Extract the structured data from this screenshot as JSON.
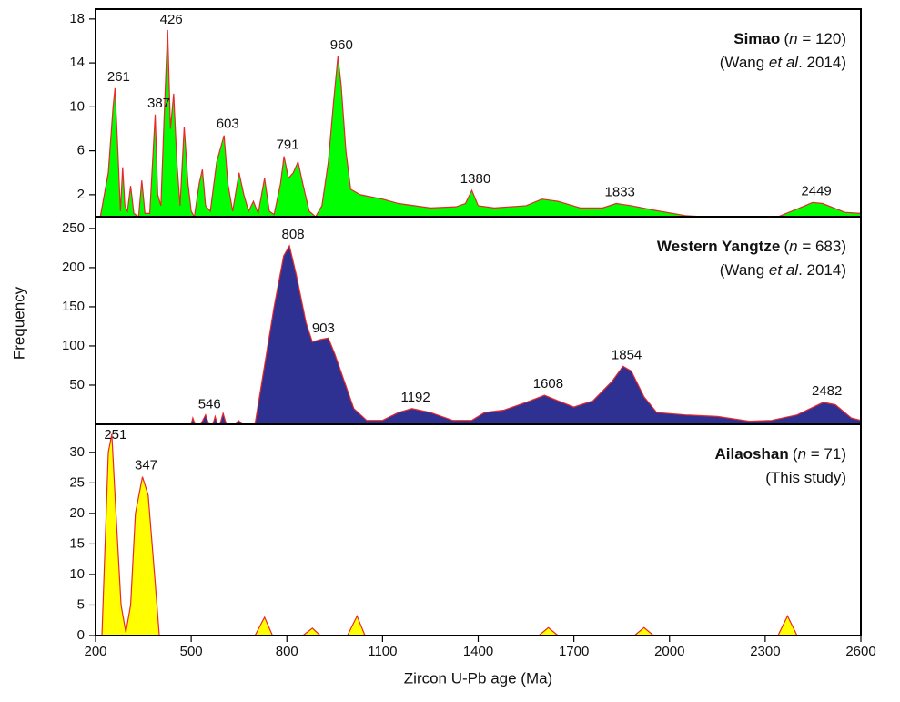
{
  "chart_data": [
    {
      "type": "area",
      "title": "Simao",
      "sample_size": [
        "(",
        "n",
        " = 120)"
      ],
      "source": [
        "(Wang ",
        "et al",
        ". 2014)"
      ],
      "ylabel": "Frequency",
      "x": [
        215,
        240,
        255,
        261,
        270,
        278,
        285,
        292,
        300,
        310,
        320,
        335,
        345,
        355,
        370,
        387,
        395,
        405,
        415,
        426,
        435,
        445,
        455,
        465,
        478,
        490,
        500,
        510,
        525,
        535,
        545,
        560,
        580,
        603,
        615,
        630,
        650,
        665,
        680,
        695,
        710,
        730,
        745,
        760,
        780,
        791,
        805,
        820,
        835,
        850,
        870,
        890,
        910,
        930,
        945,
        960,
        970,
        985,
        1000,
        1030,
        1100,
        1150,
        1250,
        1330,
        1360,
        1380,
        1400,
        1450,
        1550,
        1600,
        1650,
        1720,
        1790,
        1833,
        1880,
        1950,
        2050,
        2100,
        2340,
        2400,
        2449,
        2480,
        2550,
        2600
      ],
      "values": [
        0,
        4,
        10,
        11.7,
        6,
        0.5,
        4.5,
        1,
        0.5,
        2.8,
        0.3,
        0,
        3.3,
        0.3,
        0.3,
        9.3,
        2,
        1,
        9,
        17,
        8,
        11.2,
        5,
        1,
        8.2,
        3,
        0.5,
        0,
        3,
        4.3,
        1,
        0.5,
        5,
        7.4,
        3,
        0.5,
        4,
        2,
        0.5,
        1.4,
        0.3,
        3.5,
        0.5,
        0.2,
        3,
        5.5,
        3.5,
        4,
        5,
        3,
        0.5,
        0,
        1,
        5,
        10,
        14.6,
        12,
        6,
        2.5,
        2,
        1.6,
        1.2,
        0.8,
        0.9,
        1.2,
        2.4,
        1,
        0.8,
        1,
        1.6,
        1.4,
        0.8,
        0.8,
        1.2,
        1,
        0.6,
        0.1,
        0,
        0,
        0.7,
        1.3,
        1.2,
        0.4,
        0.3
      ],
      "color": "#00ff00",
      "line_color": "#e8282a",
      "peaks": [
        261,
        387,
        426,
        603,
        791,
        960,
        1380,
        1833,
        2449
      ],
      "xlim": [
        200,
        2600
      ],
      "ylim": [
        0,
        18.9
      ],
      "yticks": [
        2,
        6,
        10,
        14,
        18
      ]
    },
    {
      "type": "area",
      "title": "Western Yangtze",
      "sample_size": [
        "(",
        "n",
        " = 683)"
      ],
      "source": [
        "(Wang ",
        "et al",
        ". 2014)"
      ],
      "x": [
        500,
        505,
        512,
        530,
        545,
        555,
        568,
        575,
        582,
        590,
        600,
        610,
        640,
        648,
        660,
        700,
        720,
        740,
        760,
        790,
        808,
        830,
        860,
        880,
        903,
        930,
        950,
        980,
        1010,
        1050,
        1100,
        1150,
        1192,
        1250,
        1320,
        1380,
        1420,
        1480,
        1550,
        1608,
        1650,
        1700,
        1760,
        1820,
        1854,
        1880,
        1920,
        1960,
        2050,
        2150,
        2250,
        2320,
        2400,
        2482,
        2520,
        2570,
        2600
      ],
      "values": [
        0,
        8,
        0,
        0,
        12,
        0,
        0,
        10,
        0,
        0,
        14,
        0,
        0,
        5,
        0,
        0,
        50,
        100,
        150,
        215,
        228,
        190,
        130,
        105,
        108,
        110,
        90,
        55,
        20,
        5,
        5,
        15,
        20,
        15,
        5,
        5,
        15,
        18,
        28,
        37,
        30,
        22,
        30,
        55,
        74,
        68,
        35,
        15,
        12,
        10,
        4,
        5,
        12,
        28,
        25,
        8,
        5
      ],
      "color": "#2e3192",
      "line_color": "#e8282a",
      "peaks": [
        546,
        808,
        903,
        1192,
        1608,
        1854,
        2482
      ],
      "xlim": [
        200,
        2600
      ],
      "ylim": [
        0,
        265
      ],
      "yticks": [
        50,
        100,
        150,
        200,
        250
      ]
    },
    {
      "type": "area",
      "title": "Ailaoshan",
      "sample_size": [
        "(",
        "n",
        " = 71)"
      ],
      "source": [
        "(This study)"
      ],
      "xlabel": "Zircon U-Pb age (Ma)",
      "x": [
        220,
        240,
        251,
        262,
        280,
        295,
        310,
        325,
        347,
        365,
        385,
        400,
        700,
        730,
        755,
        850,
        880,
        905,
        990,
        1020,
        1045,
        1590,
        1620,
        1650,
        1890,
        1920,
        1950,
        2340,
        2370,
        2400
      ],
      "values": [
        0,
        30,
        33,
        22,
        5,
        0.5,
        5,
        20,
        26,
        23,
        10,
        0,
        0,
        3,
        0,
        0,
        1.2,
        0,
        0,
        3.2,
        0,
        0,
        1.3,
        0,
        0,
        1.3,
        0,
        0,
        3.2,
        0
      ],
      "color": "#ffff00",
      "line_color": "#e8282a",
      "peaks": [
        251,
        347
      ],
      "xlim": [
        200,
        2600
      ],
      "ylim": [
        0,
        34.6
      ],
      "yticks": [
        0,
        5,
        10,
        15,
        20,
        25,
        30
      ],
      "xticks": [
        200,
        500,
        800,
        1100,
        1400,
        1700,
        2000,
        2300,
        2600
      ]
    }
  ]
}
